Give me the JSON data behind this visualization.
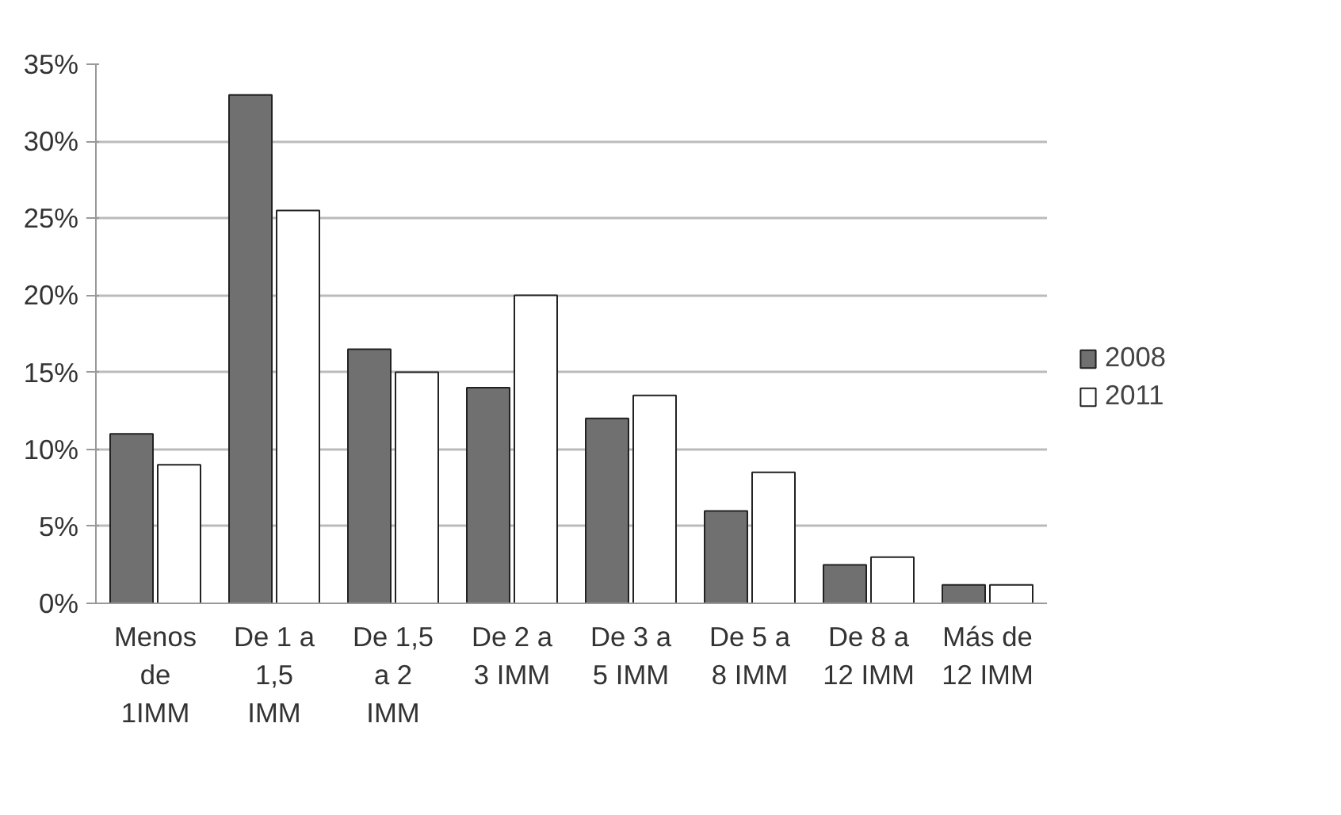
{
  "chart_data": {
    "type": "bar",
    "categories": [
      "Menos de 1IMM",
      "De 1 a 1,5 IMM",
      "De 1,5 a 2 IMM",
      "De 2 a 3 IMM",
      "De 3 a 5 IMM",
      "De 5 a 8 IMM",
      "De 8 a 12 IMM",
      "Más de 12 IMM"
    ],
    "series": [
      {
        "name": "2008",
        "color": "#707070",
        "values": [
          11,
          33,
          16.5,
          14,
          12,
          6,
          2.5,
          1.2
        ]
      },
      {
        "name": "2011",
        "color": "#ffffff",
        "values": [
          9,
          25.5,
          15,
          20,
          13.5,
          8.5,
          3,
          1.2
        ]
      }
    ],
    "ylim": [
      0,
      35
    ],
    "yticks": [
      {
        "value": 0,
        "label": "0%"
      },
      {
        "value": 5,
        "label": "5%"
      },
      {
        "value": 10,
        "label": "10%"
      },
      {
        "value": 15,
        "label": "15%"
      },
      {
        "value": 20,
        "label": "20%"
      },
      {
        "value": 25,
        "label": "25%"
      },
      {
        "value": 30,
        "label": "30%"
      },
      {
        "value": 35,
        "label": "35%"
      }
    ],
    "grid": "y",
    "legend": "right"
  }
}
